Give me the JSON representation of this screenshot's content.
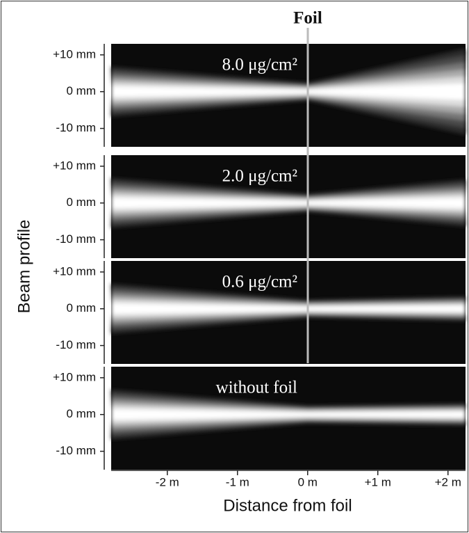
{
  "chart_data": {
    "type": "image-panels",
    "title": "Foil",
    "xlabel": "Distance from foil",
    "ylabel": "Beam profile",
    "xlim": [
      -2.8,
      2.25
    ],
    "xticks": [
      {
        "value": -2,
        "label": "-2 m"
      },
      {
        "value": -1,
        "label": "-1 m"
      },
      {
        "value": 0,
        "label": "0 m"
      },
      {
        "value": 1,
        "label": "+1 m"
      },
      {
        "value": 2,
        "label": "+2 m"
      }
    ],
    "ylim": [
      -15,
      13
    ],
    "yticks": [
      {
        "value": 10,
        "label": "+10 mm"
      },
      {
        "value": 0,
        "label": "0 mm"
      },
      {
        "value": -10,
        "label": "-10 mm"
      }
    ],
    "panels": [
      {
        "label": "8.0 μg/cm²"
      },
      {
        "label": "2.0 μg/cm²"
      },
      {
        "label": "0.6 μg/cm²"
      },
      {
        "label": "without foil"
      }
    ]
  }
}
